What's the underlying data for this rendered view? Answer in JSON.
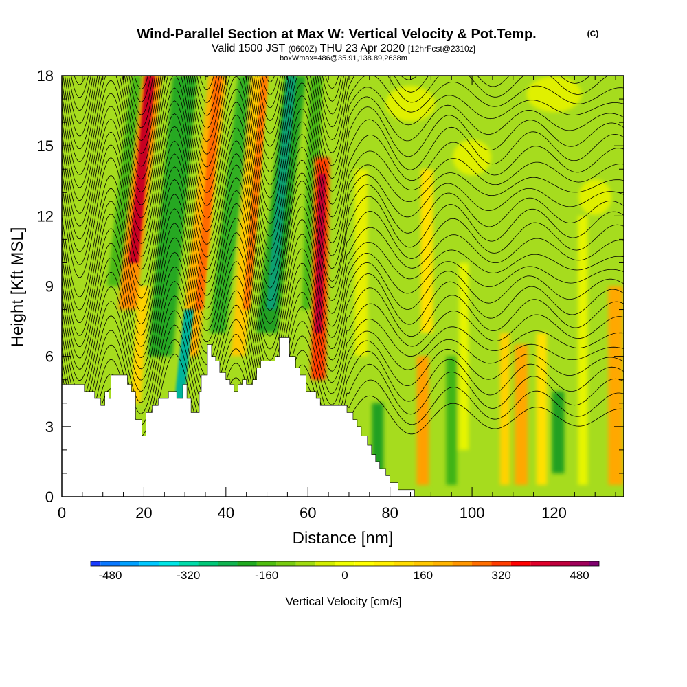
{
  "chart_data": {
    "type": "heatmap",
    "title": "Wind-Parallel Section at Max W: Vertical Velocity & Pot.Temp.",
    "title_mark": "(C)",
    "subtitle": {
      "valid": "Valid 1500 JST",
      "utc": "(0600Z)",
      "date": "THU 23 Apr 2020",
      "fcst": "[12hrFcst@2310z]"
    },
    "box_info": "boxWmax=486@35.91,138.89,2638m",
    "xlabel": "Distance [nm]",
    "ylabel": "Height [Kft MSL]",
    "xlim": [
      0,
      137
    ],
    "ylim": [
      0,
      18
    ],
    "x_ticks": [
      0,
      20,
      40,
      60,
      80,
      100,
      120
    ],
    "y_ticks": [
      0,
      3,
      6,
      9,
      12,
      15,
      18
    ],
    "colorbar": {
      "label": "Vertical Velocity [cm/s]",
      "range": [
        -520,
        520
      ],
      "step": 40,
      "tick_values": [
        -480,
        -320,
        -160,
        0,
        160,
        320,
        480
      ],
      "tick_labels": [
        "-480",
        "-320",
        "-160",
        "0",
        "160",
        "320",
        "480"
      ],
      "colors": [
        "#0000ff",
        "#1a3cff",
        "#0a78ff",
        "#00a0ff",
        "#00c8ff",
        "#00e6e6",
        "#00dcaa",
        "#00c878",
        "#10b450",
        "#20aa20",
        "#50be10",
        "#78cc10",
        "#a0dc10",
        "#d2ee00",
        "#f0ff00",
        "#ffff00",
        "#fff000",
        "#ffdc00",
        "#ffc800",
        "#ffb400",
        "#ff9600",
        "#ff6e00",
        "#ff3c00",
        "#ff0000",
        "#e0002a",
        "#c0003c",
        "#a0005a",
        "#80006e",
        "#60007c"
      ]
    },
    "terrain_kft": [
      [
        0,
        4.8
      ],
      [
        5.5,
        4.8
      ],
      [
        5.5,
        4.5
      ],
      [
        8,
        4.5
      ],
      [
        8,
        4.2
      ],
      [
        9.5,
        4.2
      ],
      [
        9.5,
        3.9
      ],
      [
        10.5,
        3.9
      ],
      [
        10.5,
        4.5
      ],
      [
        11.5,
        4.5
      ],
      [
        11.5,
        4.2
      ],
      [
        12,
        4.2
      ],
      [
        12,
        5.2
      ],
      [
        16,
        5.2
      ],
      [
        16,
        4.8
      ],
      [
        17,
        4.8
      ],
      [
        17,
        4.5
      ],
      [
        18,
        4.5
      ],
      [
        18,
        3.3
      ],
      [
        19.5,
        3.3
      ],
      [
        19.5,
        2.6
      ],
      [
        20.5,
        2.6
      ],
      [
        20.5,
        3.6
      ],
      [
        22,
        3.6
      ],
      [
        22,
        3.9
      ],
      [
        23.5,
        3.9
      ],
      [
        23.5,
        4.2
      ],
      [
        26,
        4.2
      ],
      [
        26,
        4.5
      ],
      [
        28,
        4.5
      ],
      [
        28,
        4.2
      ],
      [
        29.5,
        4.2
      ],
      [
        29.5,
        4.8
      ],
      [
        30.5,
        4.8
      ],
      [
        30.5,
        4.2
      ],
      [
        31.5,
        4.2
      ],
      [
        31.5,
        3.6
      ],
      [
        33.5,
        3.6
      ],
      [
        33.5,
        4.5
      ],
      [
        34,
        4.5
      ],
      [
        34,
        5.2
      ],
      [
        35.5,
        5.2
      ],
      [
        35.5,
        6.5
      ],
      [
        36.5,
        6.5
      ],
      [
        36.5,
        6.0
      ],
      [
        37.5,
        6.0
      ],
      [
        37.5,
        5.8
      ],
      [
        38.5,
        5.8
      ],
      [
        38.5,
        5.3
      ],
      [
        40,
        5.3
      ],
      [
        40,
        5.0
      ],
      [
        41,
        5.0
      ],
      [
        41,
        4.8
      ],
      [
        42,
        4.8
      ],
      [
        42,
        4.5
      ],
      [
        43,
        4.5
      ],
      [
        43,
        4.8
      ],
      [
        44,
        4.8
      ],
      [
        44,
        5.0
      ],
      [
        45,
        5.0
      ],
      [
        45,
        4.8
      ],
      [
        46.5,
        4.8
      ],
      [
        46.5,
        5.0
      ],
      [
        47.5,
        5.0
      ],
      [
        47.5,
        5.5
      ],
      [
        48.5,
        5.5
      ],
      [
        48.5,
        5.8
      ],
      [
        52,
        5.8
      ],
      [
        52,
        6.0
      ],
      [
        53,
        6.0
      ],
      [
        53,
        6.8
      ],
      [
        55.5,
        6.8
      ],
      [
        55.5,
        6.0
      ],
      [
        57,
        6.0
      ],
      [
        57,
        5.5
      ],
      [
        58,
        5.5
      ],
      [
        58,
        5.2
      ],
      [
        59.5,
        5.2
      ],
      [
        59.5,
        4.5
      ],
      [
        62,
        4.5
      ],
      [
        62,
        4.2
      ],
      [
        63,
        4.2
      ],
      [
        63,
        3.9
      ],
      [
        69.5,
        3.9
      ],
      [
        69.5,
        3.6
      ],
      [
        71,
        3.6
      ],
      [
        71,
        3.3
      ],
      [
        72,
        3.3
      ],
      [
        72,
        3.0
      ],
      [
        73,
        3.0
      ],
      [
        73,
        2.6
      ],
      [
        74.5,
        2.6
      ],
      [
        74.5,
        2.2
      ],
      [
        75.5,
        2.2
      ],
      [
        75.5,
        1.8
      ],
      [
        76.5,
        1.8
      ],
      [
        76.5,
        1.5
      ],
      [
        77.5,
        1.5
      ],
      [
        77.5,
        1.2
      ],
      [
        79,
        1.2
      ],
      [
        79,
        0.9
      ],
      [
        80,
        0.9
      ],
      [
        80,
        0.6
      ],
      [
        82,
        0.6
      ],
      [
        82,
        0.3
      ],
      [
        86,
        0.3
      ],
      [
        86,
        0.0
      ],
      [
        137,
        0.0
      ]
    ],
    "w_field_desc": "narrow inclined updraft/downdraft wave bands over terrain (x 15-65), weaker vertical bands downstream",
    "theta_contours": "potential temperature isolines, steeply tilted over the mountains, near-horizontal downstream"
  }
}
